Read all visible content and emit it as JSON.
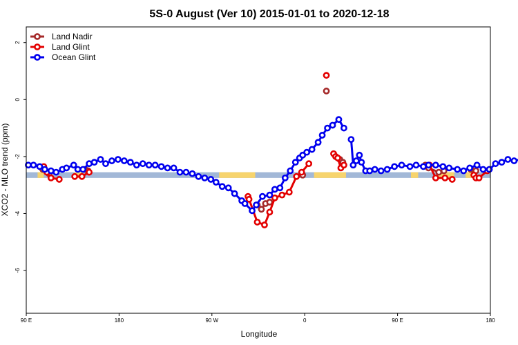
{
  "chart_data": {
    "type": "line",
    "title": "5S-0 August (Ver 10)   2015-01-01 to 2020-12-18",
    "xlabel": "Longitude",
    "ylabel": "XCO2 - MLO trend (ppm)",
    "x_ticks": [
      {
        "value": 90,
        "label": "90 E"
      },
      {
        "value": 180,
        "label": "180"
      },
      {
        "value": 270,
        "label": "90 W"
      },
      {
        "value": 360,
        "label": "0"
      },
      {
        "value": 450,
        "label": "90 E"
      },
      {
        "value": 540,
        "label": "180"
      }
    ],
    "y_ticks": [
      {
        "value": 2,
        "label": "2"
      },
      {
        "value": 0,
        "label": "0"
      },
      {
        "value": -2,
        "label": "-2"
      },
      {
        "value": -4,
        "label": "-4"
      },
      {
        "value": -6,
        "label": "-6"
      }
    ],
    "xlim": [
      90,
      540
    ],
    "ylim": [
      -7.5,
      2.55
    ],
    "grid": false,
    "legend_position": "top-left",
    "surface_band": {
      "y_range": [
        -2.55,
        -2.75
      ],
      "ocean_color": "#a2b8d7",
      "land_color": "#f7d46d",
      "land_segments": [
        [
          101,
          107
        ],
        [
          137,
          145
        ],
        [
          277,
          312
        ],
        [
          369,
          400
        ],
        [
          463,
          470
        ],
        [
          488,
          505
        ],
        [
          516,
          525
        ]
      ]
    },
    "series": [
      {
        "name": "Land Nadir",
        "color": "#a52a2a",
        "segments": [
          [
            [
              106,
              -2.45
            ],
            [
              112,
              -2.6
            ]
          ],
          [
            [
              147,
              -2.45
            ],
            [
              150,
              -2.5
            ]
          ],
          [
            [
              314,
              -3.7
            ],
            [
              318,
              -3.85
            ],
            [
              322,
              -3.65
            ],
            [
              326,
              -3.6
            ]
          ],
          [
            [
              358,
              -2.65
            ]
          ],
          [
            [
              381,
              0.3
            ]
          ],
          [
            [
              394,
              -2.1
            ],
            [
              397,
              -2.2
            ]
          ],
          [
            [
              477,
              -2.3
            ],
            [
              480,
              -2.4
            ],
            [
              490,
              -2.55
            ],
            [
              495,
              -2.5
            ]
          ],
          [
            [
              521,
              -2.45
            ],
            [
              526,
              -2.5
            ]
          ]
        ]
      },
      {
        "name": "Land Glint",
        "color": "#e30000",
        "segments": [
          [
            [
              107,
              -2.35
            ],
            [
              110,
              -2.55
            ],
            [
              114,
              -2.75
            ],
            [
              122,
              -2.8
            ]
          ],
          [
            [
              137,
              -2.7
            ],
            [
              144,
              -2.7
            ],
            [
              151,
              -2.55
            ]
          ],
          [
            [
              305,
              -3.4
            ],
            [
              306,
              -3.5
            ],
            [
              314,
              -4.3
            ],
            [
              321,
              -4.4
            ],
            [
              326,
              -3.95
            ],
            [
              331,
              -3.45
            ],
            [
              338,
              -3.35
            ],
            [
              345,
              -3.25
            ],
            [
              352,
              -2.7
            ],
            [
              357,
              -2.55
            ],
            [
              364,
              -2.25
            ]
          ],
          [
            [
              381,
              0.85
            ]
          ],
          [
            [
              388,
              -1.9
            ],
            [
              390,
              -2.0
            ],
            [
              392,
              -2.05
            ],
            [
              395,
              -2.4
            ],
            [
              398,
              -2.3
            ]
          ],
          [
            [
              481,
              -2.3
            ],
            [
              487,
              -2.75
            ],
            [
              496,
              -2.75
            ],
            [
              503,
              -2.8
            ]
          ],
          [
            [
              524,
              -2.65
            ],
            [
              526,
              -2.75
            ],
            [
              529,
              -2.75
            ],
            [
              537,
              -2.5
            ]
          ]
        ]
      },
      {
        "name": "Ocean Glint",
        "color": "#0000ee",
        "segments": [
          [
            [
              92,
              -2.3
            ],
            [
              97,
              -2.3
            ],
            [
              103,
              -2.35
            ],
            [
              108,
              -2.45
            ],
            [
              114,
              -2.5
            ],
            [
              119,
              -2.55
            ],
            [
              125,
              -2.45
            ],
            [
              129,
              -2.4
            ],
            [
              136,
              -2.3
            ],
            [
              140,
              -2.45
            ],
            [
              145,
              -2.45
            ],
            [
              151,
              -2.25
            ],
            [
              156,
              -2.2
            ],
            [
              162,
              -2.1
            ],
            [
              167,
              -2.25
            ],
            [
              173,
              -2.15
            ],
            [
              179,
              -2.1
            ],
            [
              185,
              -2.15
            ],
            [
              191,
              -2.2
            ],
            [
              197,
              -2.3
            ],
            [
              203,
              -2.25
            ],
            [
              209,
              -2.3
            ],
            [
              215,
              -2.3
            ],
            [
              221,
              -2.35
            ],
            [
              227,
              -2.4
            ],
            [
              233,
              -2.4
            ],
            [
              239,
              -2.55
            ],
            [
              245,
              -2.55
            ],
            [
              251,
              -2.6
            ],
            [
              257,
              -2.7
            ],
            [
              263,
              -2.75
            ],
            [
              269,
              -2.8
            ],
            [
              274,
              -2.9
            ],
            [
              280,
              -3.05
            ],
            [
              286,
              -3.1
            ],
            [
              292,
              -3.3
            ],
            [
              299,
              -3.55
            ],
            [
              302,
              -3.65
            ],
            [
              309,
              -3.9
            ],
            [
              313,
              -3.7
            ],
            [
              319,
              -3.4
            ],
            [
              326,
              -3.35
            ],
            [
              331,
              -3.15
            ],
            [
              336,
              -3.1
            ],
            [
              341,
              -2.75
            ],
            [
              346,
              -2.5
            ],
            [
              351,
              -2.2
            ],
            [
              355,
              -2.05
            ],
            [
              358,
              -1.95
            ],
            [
              362,
              -1.85
            ],
            [
              367,
              -1.75
            ],
            [
              373,
              -1.5
            ],
            [
              377,
              -1.25
            ],
            [
              382,
              -1.0
            ],
            [
              387,
              -0.9
            ],
            [
              393,
              -0.7
            ],
            [
              398,
              -1.0
            ]
          ],
          [
            [
              405,
              -1.4
            ],
            [
              407,
              -2.3
            ],
            [
              410,
              -2.15
            ],
            [
              413,
              -1.95
            ],
            [
              415,
              -2.2
            ],
            [
              419,
              -2.5
            ],
            [
              423,
              -2.5
            ],
            [
              428,
              -2.45
            ],
            [
              434,
              -2.5
            ],
            [
              440,
              -2.45
            ],
            [
              447,
              -2.35
            ],
            [
              454,
              -2.3
            ],
            [
              462,
              -2.35
            ],
            [
              468,
              -2.3
            ],
            [
              475,
              -2.35
            ],
            [
              480,
              -2.3
            ],
            [
              487,
              -2.3
            ],
            [
              494,
              -2.35
            ],
            [
              500,
              -2.4
            ],
            [
              508,
              -2.45
            ],
            [
              514,
              -2.5
            ],
            [
              520,
              -2.4
            ],
            [
              527,
              -2.3
            ],
            [
              533,
              -2.45
            ],
            [
              539,
              -2.45
            ],
            [
              545,
              -2.25
            ],
            [
              551,
              -2.2
            ],
            [
              557,
              -2.1
            ],
            [
              563,
              -2.15
            ],
            [
              570,
              -2.1
            ],
            [
              576,
              -2.05
            ]
          ]
        ]
      }
    ]
  }
}
